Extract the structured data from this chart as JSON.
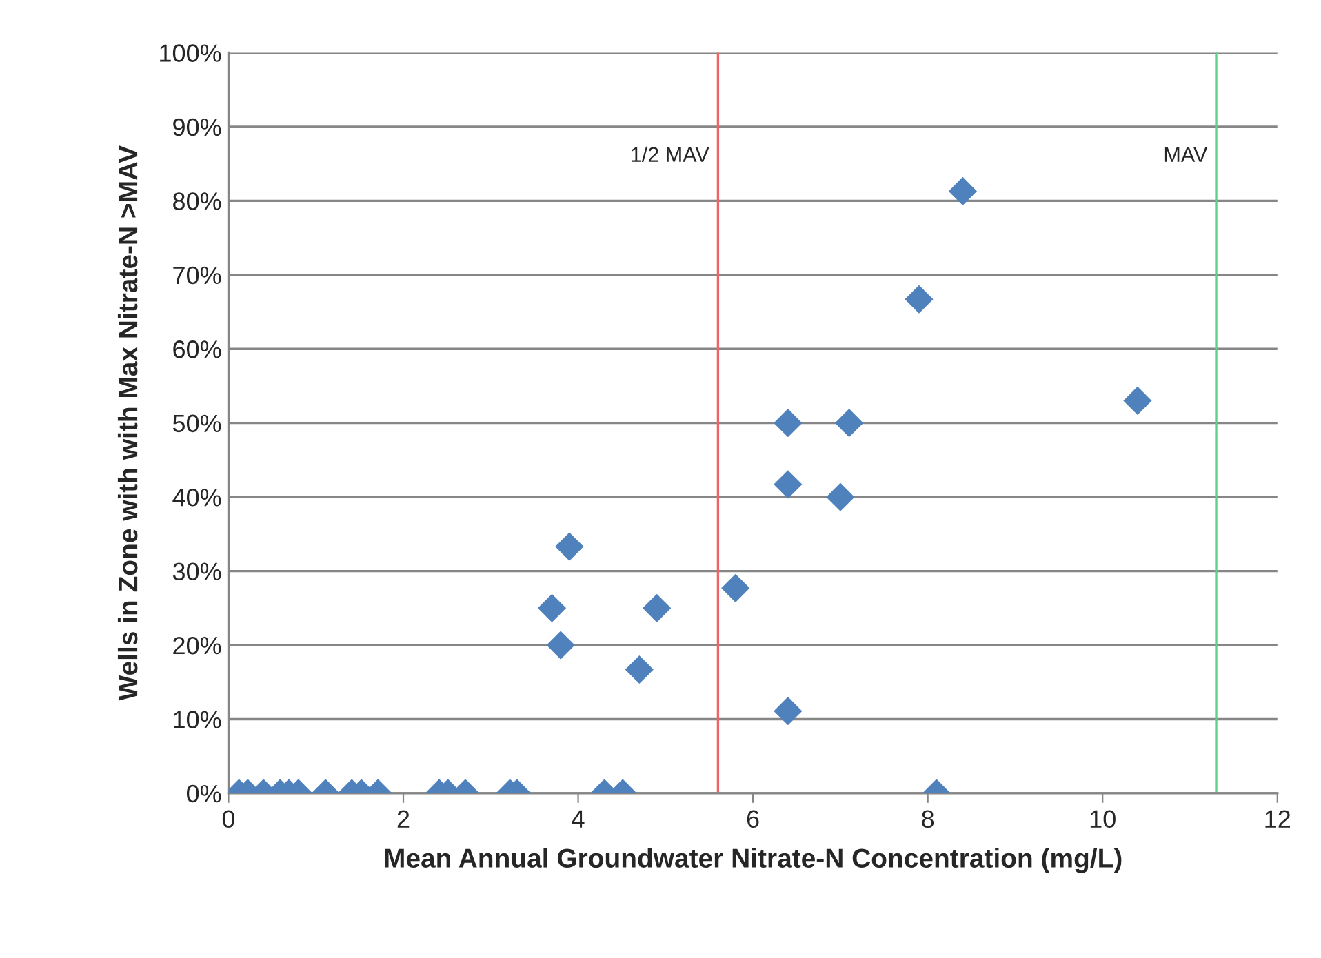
{
  "chart_data": {
    "type": "scatter",
    "xlabel": "Mean Annual Groundwater Nitrate-N Concentration (mg/L)",
    "ylabel": "Wells in Zone with with Max Nitrate-N >MAV",
    "series": [
      {
        "color": "#4f81bd",
        "x": [
          0.12,
          0.22,
          0.4,
          0.59,
          0.69,
          0.8,
          1.11,
          1.41,
          1.52,
          1.71,
          2.41,
          2.51,
          2.71,
          3.22,
          3.3,
          4.3,
          4.51,
          8.1,
          3.7,
          3.8,
          3.9,
          4.7,
          4.9,
          5.8,
          6.4,
          6.4,
          6.4,
          7.0,
          7.1,
          7.9,
          8.4,
          10.4
        ],
        "values": [
          0,
          0,
          0,
          0,
          0,
          0,
          0,
          0,
          0,
          0,
          0,
          0,
          0,
          0,
          0,
          0,
          0,
          0,
          25,
          20,
          33.3,
          16.7,
          25,
          27.7,
          11.1,
          41.7,
          50,
          40,
          50,
          66.7,
          81.3,
          53
        ]
      }
    ],
    "marker": "diamond",
    "xlim": [
      0,
      12
    ],
    "xticks": [
      0,
      2,
      4,
      6,
      8,
      10,
      12
    ],
    "ylim": [
      0,
      100
    ],
    "yticks": [
      {
        "value": 0,
        "label": "0%"
      },
      {
        "value": 10,
        "label": "10%"
      },
      {
        "value": 20,
        "label": "20%"
      },
      {
        "value": 30,
        "label": "30%"
      },
      {
        "value": 40,
        "label": "40%"
      },
      {
        "value": 50,
        "label": "50%"
      },
      {
        "value": 60,
        "label": "60%"
      },
      {
        "value": 70,
        "label": "70%"
      },
      {
        "value": 80,
        "label": "80%"
      },
      {
        "value": 90,
        "label": "90%"
      },
      {
        "value": 100,
        "label": "100%"
      }
    ],
    "grid": "y",
    "ref_lines": [
      {
        "axis": "x",
        "value": 5.6,
        "label": "1/2 MAV",
        "color": "#f06464"
      },
      {
        "axis": "x",
        "value": 11.3,
        "label": "MAV",
        "color": "#5fcf8a"
      }
    ]
  }
}
